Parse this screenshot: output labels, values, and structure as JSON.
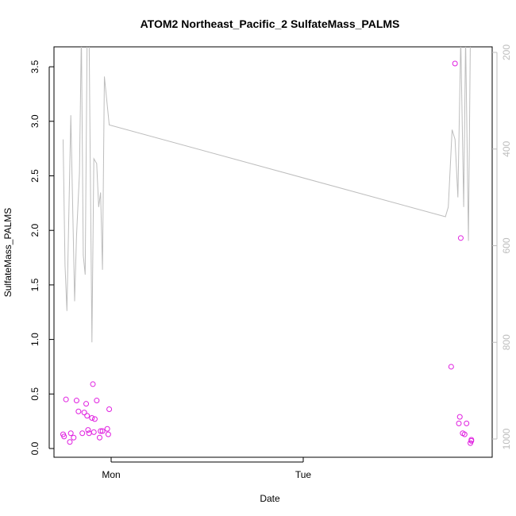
{
  "chart_data": {
    "type": "scatter",
    "title": "ATOM2 Northeast_Pacific_2 SulfateMass_PALMS",
    "xlabel": "Date",
    "ylabel": "SulfateMass_PALMS",
    "x_axis": {
      "type": "date",
      "ticks": [
        "Mon",
        "Tue"
      ]
    },
    "y_axis": {
      "ticks": [
        "0.0",
        "0.5",
        "1.0",
        "1.5",
        "2.0",
        "2.5",
        "3.0",
        "3.5"
      ],
      "range": [
        -0.05,
        3.65
      ]
    },
    "y2_axis": {
      "ticks": [
        "200",
        "400",
        "600",
        "800",
        "1000"
      ],
      "range": [
        1040,
        190
      ],
      "reversed": true
    },
    "grid": false,
    "legend": "none",
    "colors": {
      "points": "#e020e0",
      "line": "#bdbdbd",
      "axis": "#000000",
      "y2_axis": "#bdbdbd"
    },
    "series": [
      {
        "type": "scatter",
        "axis": "left",
        "x": [
          -0.25,
          -0.245,
          -0.235,
          -0.215,
          -0.21,
          -0.195,
          -0.18,
          -0.17,
          -0.15,
          -0.14,
          -0.13,
          -0.125,
          -0.12,
          -0.115,
          -0.1,
          -0.095,
          -0.09,
          -0.085,
          -0.075,
          -0.06,
          -0.055,
          -0.045,
          -0.02,
          -0.015,
          -0.01,
          1.77,
          1.79,
          1.81,
          1.815,
          1.82,
          1.83,
          1.84,
          1.85,
          1.87,
          1.875,
          1.875
        ],
        "y": [
          0.13,
          0.11,
          0.45,
          0.06,
          0.14,
          0.1,
          0.44,
          0.34,
          0.14,
          0.33,
          0.41,
          0.3,
          0.17,
          0.14,
          0.28,
          0.59,
          0.15,
          0.27,
          0.44,
          0.1,
          0.16,
          0.16,
          0.18,
          0.13,
          0.36,
          0.75,
          3.53,
          0.23,
          0.29,
          1.93,
          0.14,
          0.13,
          0.23,
          0.05,
          0.08,
          0.07
        ]
      },
      {
        "type": "line",
        "axis": "right",
        "x": [
          -0.25,
          -0.24,
          -0.23,
          -0.21,
          -0.19,
          -0.18,
          -0.165,
          -0.155,
          -0.145,
          -0.135,
          -0.125,
          -0.115,
          -0.1,
          -0.09,
          -0.075,
          -0.065,
          -0.055,
          -0.045,
          -0.035,
          -0.01,
          1.74,
          1.755,
          1.775,
          1.79,
          1.805,
          1.82,
          1.835,
          1.845,
          1.86,
          1.87
        ],
        "y": [
          380,
          640,
          735,
          330,
          715,
          580,
          450,
          160,
          620,
          660,
          160,
          160,
          800,
          420,
          430,
          520,
          490,
          650,
          250,
          350,
          540,
          520,
          360,
          380,
          500,
          170,
          520,
          170,
          590,
          170
        ]
      }
    ]
  }
}
